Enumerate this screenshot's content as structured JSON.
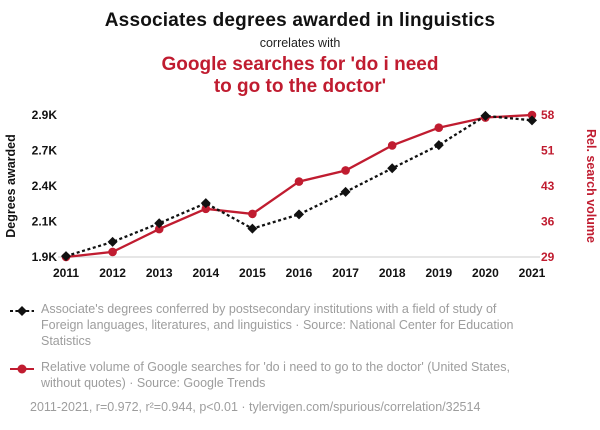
{
  "title": {
    "main": "Associates degrees awarded in linguistics",
    "connector": "correlates with",
    "secondary": "Google searches for 'do i need to go to the doctor'"
  },
  "colors": {
    "accent_red": "#c01c30",
    "series_black": "#111111",
    "legend_gray": "#9d9d9d",
    "axis_line": "#cccccc"
  },
  "chart_data": {
    "type": "line",
    "x": [
      2011,
      2012,
      2013,
      2014,
      2015,
      2016,
      2017,
      2018,
      2019,
      2020,
      2021
    ],
    "series": [
      {
        "name": "Associates degrees awarded in linguistics",
        "axis": "left",
        "style": "dashed",
        "marker": "diamond",
        "color": "#111111",
        "values": [
          1905,
          1985,
          2090,
          2255,
          2060,
          2160,
          2350,
          2550,
          2730,
          2895,
          2870
        ]
      },
      {
        "name": "Google searches for 'do i need to go to the doctor'",
        "axis": "right",
        "style": "solid",
        "marker": "circle",
        "color": "#c01c30",
        "values": [
          29,
          30,
          34.5,
          38.5,
          37.5,
          44,
          46.5,
          52,
          55.5,
          57.5,
          58
        ]
      }
    ],
    "left_axis": {
      "label": "Degrees awarded",
      "tick_labels": [
        "1.9K",
        "2.1K",
        "2.4K",
        "2.7K",
        "2.9K"
      ],
      "tick_values": [
        1900,
        2100,
        2400,
        2700,
        2900
      ]
    },
    "right_axis": {
      "label": "Rel. search volume",
      "tick_labels": [
        "29",
        "36",
        "43",
        "51",
        "58"
      ],
      "tick_values": [
        29,
        36,
        43,
        51,
        58
      ]
    },
    "grid": false,
    "legend_position": "below"
  },
  "legend": [
    {
      "marker": "black-diamond-dashed-line",
      "text": "Associate's degrees conferred by postsecondary institutions with a field of study of Foreign languages, literatures, and linguistics · Source: National Center for Education Statistics"
    },
    {
      "marker": "red-circle-solid-line",
      "text": "Relative volume of Google searches for 'do i need to go to the doctor' (United States, without quotes) · Source: Google Trends"
    }
  ],
  "footer": "2011-2021, r=0.972, r²=0.944, p<0.01 · tylervigen.com/spurious/correlation/32514"
}
